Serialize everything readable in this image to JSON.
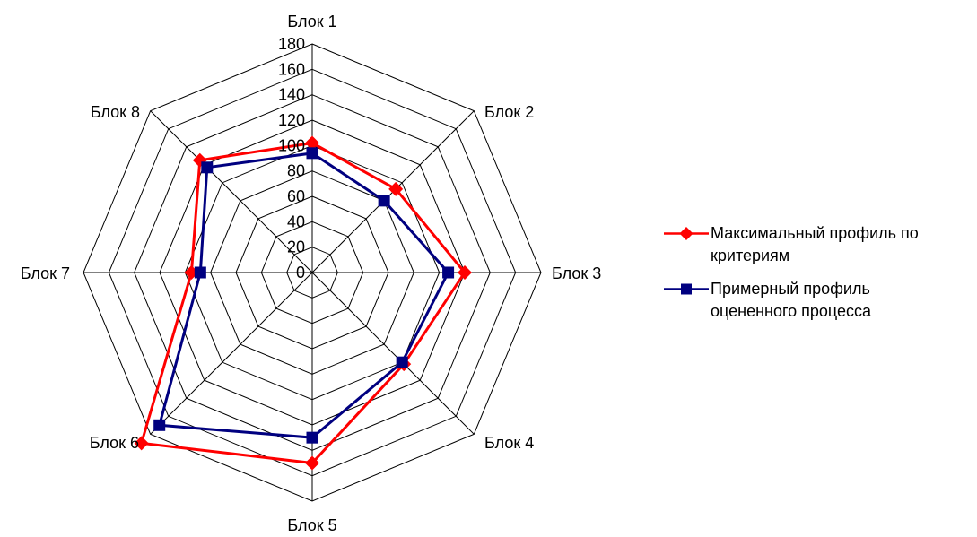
{
  "chart_data": {
    "type": "radar",
    "axes": [
      "Блок 1",
      "Блок 2",
      "Блок 3",
      "Блок 4",
      "Блок 5",
      "Блок 6",
      "Блок 7",
      "Блок 8"
    ],
    "r_ticks": [
      0,
      20,
      40,
      60,
      80,
      100,
      120,
      140,
      160,
      180
    ],
    "rlim": [
      0,
      180
    ],
    "grid": true,
    "legend_position": "right",
    "series": [
      {
        "name": "Максимальный профиль по критериям",
        "values": [
          102,
          93,
          120,
          102,
          150,
          190,
          95,
          125
        ],
        "color": "#ff0000",
        "marker": "diamond"
      },
      {
        "name": "Примерный профиль оцененного процесса",
        "values": [
          94,
          80,
          107,
          100,
          130,
          170,
          88,
          117
        ],
        "color": "#000080",
        "marker": "square"
      }
    ]
  },
  "legend": {
    "items": [
      {
        "line1": "Максимальный профиль по",
        "line2": "критериям"
      },
      {
        "line1": "Примерный профиль",
        "line2": "оцененного процесса"
      }
    ]
  }
}
